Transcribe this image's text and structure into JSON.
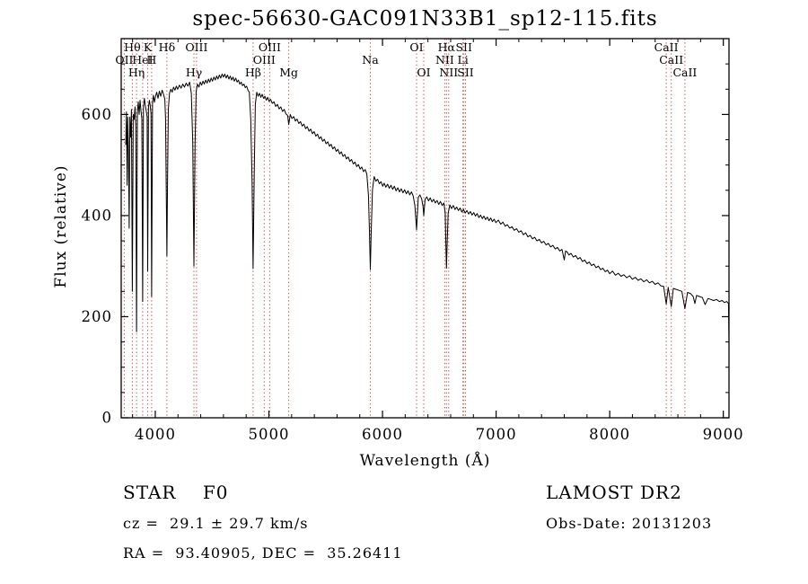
{
  "title": "spec-56630-GAC091N33B1_sp12-115.fits",
  "footer": {
    "object_type": "STAR    F0",
    "survey": "LAMOST DR2",
    "velocity": "cz =  29.1 ± 29.7 km/s",
    "obs_date": "Obs-Date: 20131203",
    "coordinates": "RA =  93.40905, DEC =  35.26411"
  },
  "chart_data": {
    "type": "line",
    "title": "spec-56630-GAC091N33B1_sp12-115.fits",
    "xlabel": "Wavelength (Å)",
    "ylabel": "Flux (relative)",
    "xlim": [
      3700,
      9050
    ],
    "ylim": [
      0,
      750
    ],
    "x_ticks": [
      4000,
      5000,
      6000,
      7000,
      8000,
      9000
    ],
    "y_ticks": [
      0,
      200,
      400,
      600
    ],
    "grid": false,
    "line_color": "#000000",
    "marker_color": "#c85c5c",
    "line_markers": [
      {
        "wavelength": 3727,
        "label": "OII",
        "row": 2
      },
      {
        "wavelength": 3798,
        "label": "Hθ",
        "row": 1
      },
      {
        "wavelength": 3835,
        "label": "Hη",
        "row": 3
      },
      {
        "wavelength": 3889,
        "label": "HeI",
        "row": 2
      },
      {
        "wavelength": 3933,
        "label": "K",
        "row": 1
      },
      {
        "wavelength": 3968,
        "label": "H",
        "row": 2
      },
      {
        "wavelength": 4102,
        "label": "Hδ",
        "row": 1
      },
      {
        "wavelength": 4340,
        "label": "Hγ",
        "row": 3
      },
      {
        "wavelength": 4363,
        "label": "OIII",
        "row": 1
      },
      {
        "wavelength": 4861,
        "label": "Hβ",
        "row": 3
      },
      {
        "wavelength": 4959,
        "label": "OIII",
        "row": 2
      },
      {
        "wavelength": 5007,
        "label": "OIII",
        "row": 1
      },
      {
        "wavelength": 5175,
        "label": "Mg",
        "row": 3
      },
      {
        "wavelength": 5893,
        "label": "Na",
        "row": 2
      },
      {
        "wavelength": 6300,
        "label": "OI",
        "row": 1
      },
      {
        "wavelength": 6363,
        "label": "OI",
        "row": 3
      },
      {
        "wavelength": 6548,
        "label": "NII",
        "row": 2
      },
      {
        "wavelength": 6563,
        "label": "Hα",
        "row": 1
      },
      {
        "wavelength": 6583,
        "label": "NII",
        "row": 3
      },
      {
        "wavelength": 6708,
        "label": "Li",
        "row": 2
      },
      {
        "wavelength": 6716,
        "label": "SII",
        "row": 1
      },
      {
        "wavelength": 6731,
        "label": "SII",
        "row": 3
      },
      {
        "wavelength": 8498,
        "label": "CaII",
        "row": 1
      },
      {
        "wavelength": 8542,
        "label": "CaII",
        "row": 2
      },
      {
        "wavelength": 8662,
        "label": "CaII",
        "row": 3
      }
    ],
    "spectrum": [
      [
        3740,
        540
      ],
      [
        3746,
        605
      ],
      [
        3752,
        460
      ],
      [
        3758,
        595
      ],
      [
        3764,
        530
      ],
      [
        3770,
        375
      ],
      [
        3776,
        595
      ],
      [
        3784,
        555
      ],
      [
        3790,
        610
      ],
      [
        3798,
        250
      ],
      [
        3806,
        600
      ],
      [
        3814,
        590
      ],
      [
        3822,
        615
      ],
      [
        3828,
        575
      ],
      [
        3835,
        170
      ],
      [
        3842,
        605
      ],
      [
        3850,
        625
      ],
      [
        3858,
        600
      ],
      [
        3866,
        628
      ],
      [
        3874,
        608
      ],
      [
        3882,
        592
      ],
      [
        3889,
        230
      ],
      [
        3896,
        615
      ],
      [
        3904,
        632
      ],
      [
        3912,
        618
      ],
      [
        3920,
        608
      ],
      [
        3928,
        595
      ],
      [
        3933,
        290
      ],
      [
        3940,
        615
      ],
      [
        3948,
        628
      ],
      [
        3955,
        618
      ],
      [
        3962,
        602
      ],
      [
        3968,
        240
      ],
      [
        3976,
        624
      ],
      [
        3984,
        638
      ],
      [
        3992,
        624
      ],
      [
        4000,
        634
      ],
      [
        4012,
        644
      ],
      [
        4024,
        632
      ],
      [
        4036,
        646
      ],
      [
        4048,
        636
      ],
      [
        4060,
        648
      ],
      [
        4072,
        640
      ],
      [
        4084,
        630
      ],
      [
        4090,
        592
      ],
      [
        4096,
        465
      ],
      [
        4102,
        320
      ],
      [
        4108,
        465
      ],
      [
        4115,
        610
      ],
      [
        4125,
        642
      ],
      [
        4137,
        650
      ],
      [
        4149,
        644
      ],
      [
        4161,
        654
      ],
      [
        4173,
        648
      ],
      [
        4185,
        656
      ],
      [
        4197,
        650
      ],
      [
        4212,
        658
      ],
      [
        4227,
        652
      ],
      [
        4242,
        660
      ],
      [
        4257,
        654
      ],
      [
        4272,
        662
      ],
      [
        4287,
        656
      ],
      [
        4302,
        664
      ],
      [
        4317,
        642
      ],
      [
        4330,
        545
      ],
      [
        4340,
        300
      ],
      [
        4350,
        545
      ],
      [
        4360,
        646
      ],
      [
        4372,
        660
      ],
      [
        4384,
        654
      ],
      [
        4396,
        664
      ],
      [
        4408,
        658
      ],
      [
        4420,
        666
      ],
      [
        4432,
        660
      ],
      [
        4444,
        668
      ],
      [
        4456,
        662
      ],
      [
        4468,
        670
      ],
      [
        4480,
        664
      ],
      [
        4492,
        672
      ],
      [
        4504,
        666
      ],
      [
        4516,
        674
      ],
      [
        4528,
        668
      ],
      [
        4540,
        676
      ],
      [
        4552,
        670
      ],
      [
        4564,
        678
      ],
      [
        4576,
        672
      ],
      [
        4588,
        680
      ],
      [
        4600,
        674
      ],
      [
        4612,
        680
      ],
      [
        4624,
        672
      ],
      [
        4636,
        678
      ],
      [
        4648,
        670
      ],
      [
        4660,
        676
      ],
      [
        4672,
        668
      ],
      [
        4684,
        674
      ],
      [
        4696,
        666
      ],
      [
        4708,
        672
      ],
      [
        4720,
        664
      ],
      [
        4732,
        668
      ],
      [
        4744,
        660
      ],
      [
        4756,
        664
      ],
      [
        4768,
        657
      ],
      [
        4780,
        660
      ],
      [
        4792,
        653
      ],
      [
        4804,
        656
      ],
      [
        4816,
        648
      ],
      [
        4828,
        644
      ],
      [
        4840,
        590
      ],
      [
        4852,
        465
      ],
      [
        4861,
        295
      ],
      [
        4871,
        485
      ],
      [
        4881,
        620
      ],
      [
        4893,
        644
      ],
      [
        4905,
        636
      ],
      [
        4917,
        642
      ],
      [
        4929,
        634
      ],
      [
        4941,
        640
      ],
      [
        4953,
        632
      ],
      [
        4965,
        636
      ],
      [
        4977,
        628
      ],
      [
        4989,
        634
      ],
      [
        5001,
        626
      ],
      [
        5015,
        630
      ],
      [
        5030,
        622
      ],
      [
        5045,
        625
      ],
      [
        5060,
        616
      ],
      [
        5075,
        620
      ],
      [
        5090,
        611
      ],
      [
        5105,
        615
      ],
      [
        5120,
        606
      ],
      [
        5135,
        610
      ],
      [
        5150,
        601
      ],
      [
        5165,
        598
      ],
      [
        5175,
        580
      ],
      [
        5188,
        600
      ],
      [
        5203,
        592
      ],
      [
        5218,
        596
      ],
      [
        5233,
        587
      ],
      [
        5248,
        591
      ],
      [
        5263,
        582
      ],
      [
        5278,
        586
      ],
      [
        5293,
        577
      ],
      [
        5308,
        581
      ],
      [
        5323,
        572
      ],
      [
        5338,
        576
      ],
      [
        5353,
        567
      ],
      [
        5368,
        571
      ],
      [
        5383,
        562
      ],
      [
        5398,
        566
      ],
      [
        5413,
        557
      ],
      [
        5428,
        561
      ],
      [
        5443,
        552
      ],
      [
        5458,
        556
      ],
      [
        5473,
        547
      ],
      [
        5488,
        551
      ],
      [
        5503,
        542
      ],
      [
        5518,
        546
      ],
      [
        5533,
        537
      ],
      [
        5548,
        541
      ],
      [
        5563,
        532
      ],
      [
        5578,
        536
      ],
      [
        5593,
        527
      ],
      [
        5608,
        531
      ],
      [
        5623,
        522
      ],
      [
        5638,
        526
      ],
      [
        5653,
        517
      ],
      [
        5668,
        521
      ],
      [
        5683,
        512
      ],
      [
        5698,
        516
      ],
      [
        5713,
        507
      ],
      [
        5728,
        511
      ],
      [
        5743,
        502
      ],
      [
        5758,
        506
      ],
      [
        5773,
        497
      ],
      [
        5788,
        501
      ],
      [
        5803,
        492
      ],
      [
        5818,
        496
      ],
      [
        5833,
        487
      ],
      [
        5848,
        491
      ],
      [
        5862,
        482
      ],
      [
        5876,
        440
      ],
      [
        5885,
        370
      ],
      [
        5893,
        293
      ],
      [
        5901,
        370
      ],
      [
        5912,
        452
      ],
      [
        5927,
        477
      ],
      [
        5942,
        468
      ],
      [
        5957,
        472
      ],
      [
        5972,
        463
      ],
      [
        5987,
        467
      ],
      [
        6002,
        458
      ],
      [
        6015,
        464
      ],
      [
        6030,
        456
      ],
      [
        6045,
        462
      ],
      [
        6060,
        454
      ],
      [
        6075,
        460
      ],
      [
        6090,
        452
      ],
      [
        6105,
        458
      ],
      [
        6120,
        449
      ],
      [
        6135,
        455
      ],
      [
        6150,
        447
      ],
      [
        6165,
        453
      ],
      [
        6180,
        445
      ],
      [
        6195,
        451
      ],
      [
        6210,
        443
      ],
      [
        6225,
        449
      ],
      [
        6240,
        441
      ],
      [
        6255,
        447
      ],
      [
        6270,
        439
      ],
      [
        6285,
        420
      ],
      [
        6300,
        372
      ],
      [
        6315,
        436
      ],
      [
        6330,
        441
      ],
      [
        6345,
        433
      ],
      [
        6357,
        418
      ],
      [
        6363,
        400
      ],
      [
        6375,
        432
      ],
      [
        6390,
        437
      ],
      [
        6405,
        429
      ],
      [
        6420,
        435
      ],
      [
        6435,
        427
      ],
      [
        6450,
        432
      ],
      [
        6465,
        425
      ],
      [
        6480,
        430
      ],
      [
        6495,
        422
      ],
      [
        6510,
        428
      ],
      [
        6525,
        420
      ],
      [
        6540,
        425
      ],
      [
        6552,
        405
      ],
      [
        6558,
        340
      ],
      [
        6563,
        296
      ],
      [
        6569,
        340
      ],
      [
        6578,
        405
      ],
      [
        6593,
        421
      ],
      [
        6608,
        414
      ],
      [
        6623,
        420
      ],
      [
        6638,
        412
      ],
      [
        6653,
        417
      ],
      [
        6668,
        410
      ],
      [
        6683,
        415
      ],
      [
        6698,
        407
      ],
      [
        6713,
        412
      ],
      [
        6728,
        405
      ],
      [
        6743,
        410
      ],
      [
        6758,
        403
      ],
      [
        6773,
        408
      ],
      [
        6788,
        401
      ],
      [
        6803,
        406
      ],
      [
        6818,
        399
      ],
      [
        6833,
        404
      ],
      [
        6848,
        396
      ],
      [
        6863,
        401
      ],
      [
        6878,
        394
      ],
      [
        6893,
        399
      ],
      [
        6908,
        392
      ],
      [
        6923,
        397
      ],
      [
        6938,
        390
      ],
      [
        6953,
        395
      ],
      [
        6968,
        388
      ],
      [
        6983,
        393
      ],
      [
        6998,
        386
      ],
      [
        7020,
        391
      ],
      [
        7040,
        383
      ],
      [
        7060,
        387
      ],
      [
        7080,
        379
      ],
      [
        7100,
        382
      ],
      [
        7120,
        375
      ],
      [
        7140,
        378
      ],
      [
        7160,
        371
      ],
      [
        7180,
        374
      ],
      [
        7200,
        367
      ],
      [
        7220,
        370
      ],
      [
        7240,
        362
      ],
      [
        7260,
        366
      ],
      [
        7280,
        358
      ],
      [
        7300,
        361
      ],
      [
        7320,
        354
      ],
      [
        7340,
        357
      ],
      [
        7360,
        350
      ],
      [
        7380,
        353
      ],
      [
        7400,
        346
      ],
      [
        7420,
        349
      ],
      [
        7440,
        342
      ],
      [
        7460,
        345
      ],
      [
        7480,
        338
      ],
      [
        7500,
        341
      ],
      [
        7520,
        334
      ],
      [
        7540,
        337
      ],
      [
        7560,
        330
      ],
      [
        7580,
        333
      ],
      [
        7600,
        312
      ],
      [
        7612,
        330
      ],
      [
        7625,
        328
      ],
      [
        7640,
        322
      ],
      [
        7660,
        325
      ],
      [
        7680,
        318
      ],
      [
        7700,
        321
      ],
      [
        7720,
        314
      ],
      [
        7740,
        317
      ],
      [
        7760,
        309
      ],
      [
        7780,
        312
      ],
      [
        7800,
        305
      ],
      [
        7820,
        308
      ],
      [
        7840,
        301
      ],
      [
        7860,
        304
      ],
      [
        7880,
        297
      ],
      [
        7900,
        300
      ],
      [
        7920,
        293
      ],
      [
        7940,
        296
      ],
      [
        7960,
        289
      ],
      [
        7980,
        292
      ],
      [
        8000,
        285
      ],
      [
        8025,
        290
      ],
      [
        8050,
        282
      ],
      [
        8075,
        286
      ],
      [
        8100,
        280
      ],
      [
        8125,
        283
      ],
      [
        8150,
        277
      ],
      [
        8175,
        281
      ],
      [
        8200,
        274
      ],
      [
        8225,
        278
      ],
      [
        8250,
        272
      ],
      [
        8275,
        275
      ],
      [
        8300,
        269
      ],
      [
        8325,
        273
      ],
      [
        8350,
        267
      ],
      [
        8375,
        270
      ],
      [
        8400,
        264
      ],
      [
        8425,
        267
      ],
      [
        8450,
        261
      ],
      [
        8475,
        260
      ],
      [
        8498,
        225
      ],
      [
        8515,
        258
      ],
      [
        8542,
        220
      ],
      [
        8560,
        256
      ],
      [
        8585,
        254
      ],
      [
        8610,
        252
      ],
      [
        8635,
        250
      ],
      [
        8662,
        216
      ],
      [
        8685,
        248
      ],
      [
        8710,
        246
      ],
      [
        8735,
        240
      ],
      [
        8750,
        226
      ],
      [
        8765,
        242
      ],
      [
        8790,
        240
      ],
      [
        8815,
        238
      ],
      [
        8840,
        224
      ],
      [
        8865,
        236
      ],
      [
        8890,
        234
      ],
      [
        8915,
        232
      ],
      [
        8940,
        234
      ],
      [
        8965,
        230
      ],
      [
        8990,
        232
      ],
      [
        9010,
        228
      ],
      [
        9030,
        230
      ],
      [
        9045,
        226
      ],
      [
        9050,
        150
      ]
    ]
  }
}
